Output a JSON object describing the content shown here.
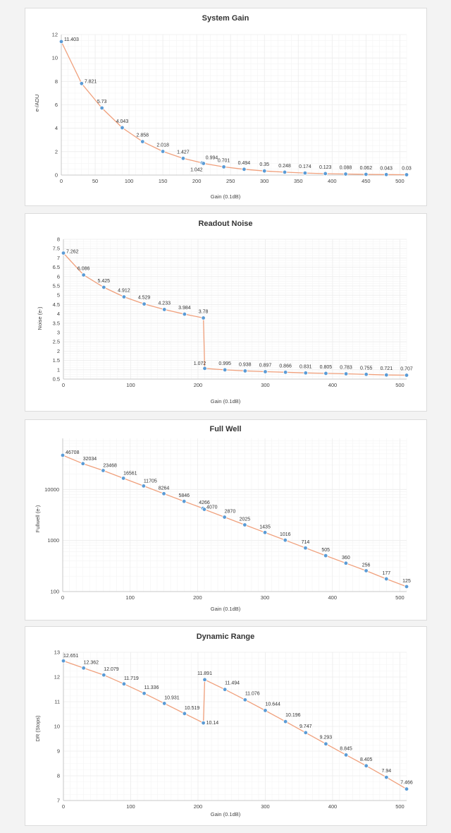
{
  "chart_data": [
    {
      "type": "line",
      "title": "System Gain",
      "xlabel": "Gain (0.1dB)",
      "ylabel": "e-/ADU",
      "xlim": [
        0,
        510
      ],
      "ylim": [
        0,
        12
      ],
      "x_ticks": [
        0,
        50,
        100,
        150,
        200,
        250,
        300,
        350,
        400,
        450,
        500
      ],
      "y_ticks": [
        0,
        2,
        4,
        6,
        8,
        10,
        12
      ],
      "y_scale": "linear",
      "grid": true,
      "x": [
        0,
        30,
        60,
        90,
        120,
        150,
        180,
        208,
        210,
        240,
        270,
        300,
        330,
        360,
        390,
        420,
        450,
        480,
        510
      ],
      "y": [
        11.403,
        7.821,
        5.73,
        4.043,
        2.858,
        2.018,
        1.427,
        1.042,
        0.994,
        0.701,
        0.494,
        0.35,
        0.248,
        0.174,
        0.123,
        0.088,
        0.062,
        0.043,
        0.03
      ],
      "labels": [
        "11.403",
        "7.821",
        "5.73",
        "4.043",
        "2.858",
        "2.018",
        "1.427",
        "1.042",
        "0.994",
        "0.701",
        "0.494",
        "0.35",
        "0.248",
        "0.174",
        "0.123",
        "0.088",
        "0.062",
        "0.043",
        "0.03"
      ],
      "line_color": "#f0a07c",
      "marker_color": "#5b9bd5"
    },
    {
      "type": "line",
      "title": "Readout Noise",
      "xlabel": "Gain (0.1dB)",
      "ylabel": "Noise (e-)",
      "xlim": [
        0,
        510
      ],
      "ylim": [
        0.5,
        8
      ],
      "x_ticks": [
        0,
        100,
        200,
        300,
        400,
        500
      ],
      "y_ticks": [
        0.5,
        1,
        1.5,
        2,
        2.5,
        3,
        3.5,
        4,
        4.5,
        5,
        5.5,
        6,
        6.5,
        7,
        7.5,
        8
      ],
      "y_tick_labels": [
        "0.5",
        "1",
        "1.5",
        "2",
        "2.5",
        "3",
        "3.5",
        "4",
        "4.5",
        "5",
        "5.5",
        "6",
        "6.5",
        "7",
        "7.5",
        "8"
      ],
      "y_scale": "linear",
      "grid": true,
      "x": [
        0,
        30,
        60,
        90,
        120,
        150,
        180,
        208,
        210,
        240,
        270,
        300,
        330,
        360,
        390,
        420,
        450,
        480,
        510
      ],
      "y": [
        7.262,
        6.086,
        5.425,
        4.912,
        4.529,
        4.233,
        3.984,
        3.78,
        1.072,
        0.995,
        0.938,
        0.897,
        0.866,
        0.831,
        0.805,
        0.783,
        0.755,
        0.721,
        0.707
      ],
      "labels": [
        "7.262",
        "6.086",
        "5.425",
        "4.912",
        "4.529",
        "4.233",
        "3.984",
        "3.78",
        "1.072",
        "0.995",
        "0.938",
        "0.897",
        "0.866",
        "0.831",
        "0.805",
        "0.783",
        "0.755",
        "0.721",
        "0.707"
      ],
      "line_color": "#f0a07c",
      "marker_color": "#5b9bd5"
    },
    {
      "type": "line",
      "title": "Full Well",
      "xlabel": "Gain (0.1dB)",
      "ylabel": "Fullwell (e-)",
      "xlim": [
        0,
        510
      ],
      "ylim": [
        100,
        100000
      ],
      "x_ticks": [
        0,
        100,
        200,
        300,
        400,
        500
      ],
      "y_ticks": [
        100,
        1000,
        10000
      ],
      "y_tick_labels": [
        "100",
        "1000",
        "10000"
      ],
      "y_scale": "log",
      "grid": true,
      "x": [
        0,
        30,
        60,
        90,
        120,
        150,
        180,
        208,
        210,
        240,
        270,
        300,
        330,
        360,
        390,
        420,
        450,
        480,
        510
      ],
      "y": [
        46708,
        32034,
        23468,
        16561,
        11705,
        8264,
        5846,
        4266,
        4070,
        2870,
        2025,
        1435,
        1016,
        714,
        505,
        360,
        256,
        177,
        125
      ],
      "labels": [
        "46708",
        "32034",
        "23468",
        "16561",
        "11705",
        "8264",
        "5846",
        "4266",
        "4070",
        "2870",
        "2025",
        "1435",
        "1016",
        "714",
        "505",
        "360",
        "256",
        "177",
        "125"
      ],
      "line_color": "#f0a07c",
      "marker_color": "#5b9bd5"
    },
    {
      "type": "line",
      "title": "Dynamic Range",
      "xlabel": "Gain (0.1dB)",
      "ylabel": "DR (Stops)",
      "xlim": [
        0,
        510
      ],
      "ylim": [
        7,
        13
      ],
      "x_ticks": [
        0,
        100,
        200,
        300,
        400,
        500
      ],
      "y_ticks": [
        7,
        8,
        9,
        10,
        11,
        12,
        13
      ],
      "y_scale": "linear",
      "grid": true,
      "x": [
        0,
        30,
        60,
        90,
        120,
        150,
        180,
        208,
        210,
        240,
        270,
        300,
        330,
        360,
        390,
        420,
        450,
        480,
        510
      ],
      "y": [
        12.651,
        12.362,
        12.079,
        11.719,
        11.336,
        10.931,
        10.519,
        10.14,
        11.891,
        11.494,
        11.076,
        10.644,
        10.196,
        9.747,
        9.293,
        8.845,
        8.405,
        7.94,
        7.466
      ],
      "labels": [
        "12.651",
        "12.362",
        "12.079",
        "11.719",
        "11.336",
        "10.931",
        "10.519",
        "10.14",
        "11.891",
        "11.494",
        "11.076",
        "10.644",
        "10.196",
        "9.747",
        "9.293",
        "8.845",
        "8.405",
        "7.94",
        "7.466"
      ],
      "line_color": "#f0a07c",
      "marker_color": "#5b9bd5"
    }
  ]
}
